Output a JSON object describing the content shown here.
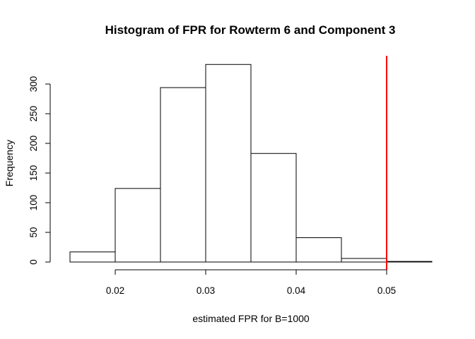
{
  "chart_data": {
    "type": "bar",
    "title": "Histogram of FPR for Rowterm 6 and Component 3",
    "xlabel": "estimated FPR for B=1000",
    "ylabel": "Frequency",
    "bins": [
      {
        "start": 0.015,
        "end": 0.02,
        "count": 17
      },
      {
        "start": 0.02,
        "end": 0.025,
        "count": 124
      },
      {
        "start": 0.025,
        "end": 0.03,
        "count": 294
      },
      {
        "start": 0.03,
        "end": 0.035,
        "count": 333
      },
      {
        "start": 0.035,
        "end": 0.04,
        "count": 183
      },
      {
        "start": 0.04,
        "end": 0.045,
        "count": 41
      },
      {
        "start": 0.045,
        "end": 0.05,
        "count": 6
      },
      {
        "start": 0.05,
        "end": 0.055,
        "count": 1
      }
    ],
    "x_ticks": [
      {
        "value": 0.02,
        "label": "0.02"
      },
      {
        "value": 0.03,
        "label": "0.03"
      },
      {
        "value": 0.04,
        "label": "0.04"
      },
      {
        "value": 0.05,
        "label": "0.05"
      }
    ],
    "y_ticks": [
      {
        "value": 0,
        "label": "0"
      },
      {
        "value": 50,
        "label": "50"
      },
      {
        "value": 100,
        "label": "100"
      },
      {
        "value": 150,
        "label": "150"
      },
      {
        "value": 200,
        "label": "200"
      },
      {
        "value": 250,
        "label": "250"
      },
      {
        "value": 300,
        "label": "300"
      }
    ],
    "xlim": [
      0.015,
      0.055
    ],
    "ylim": [
      0,
      350
    ],
    "reference_line": {
      "x": 0.05,
      "color": "#ff0000"
    },
    "grid": false,
    "legend": "none"
  }
}
